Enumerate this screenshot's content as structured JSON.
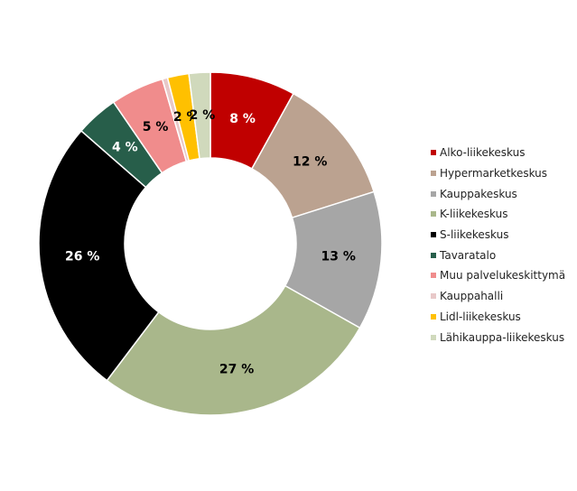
{
  "chart_data": {
    "type": "pie",
    "donut": true,
    "title": "",
    "legend_position": "right",
    "slices": [
      {
        "label": "Alko-liikekeskus",
        "value": 8,
        "display": "8 %",
        "color": "#c00000",
        "label_color": "#ffffff"
      },
      {
        "label": "Hypermarketkeskus",
        "value": 12,
        "display": "12 %",
        "color": "#bba290",
        "label_color": "#000000"
      },
      {
        "label": "Kauppakeskus",
        "value": 13,
        "display": "13 %",
        "color": "#a6a6a6",
        "label_color": "#000000"
      },
      {
        "label": "K-liikekeskus",
        "value": 27,
        "display": "27 %",
        "color": "#a9b78b",
        "label_color": "#000000"
      },
      {
        "label": "S-liikekeskus",
        "value": 26,
        "display": "26 %",
        "color": "#000000",
        "label_color": "#ffffff"
      },
      {
        "label": "Tavaratalo",
        "value": 4,
        "display": "4 %",
        "color": "#275e4a",
        "label_color": "#ffffff"
      },
      {
        "label": "Muu palvelukeskittymä",
        "value": 5,
        "display": "5 %",
        "color": "#f08c8c",
        "label_color": "#000000"
      },
      {
        "label": "Kauppahalli",
        "value": 0.5,
        "display": "",
        "color": "#e8c8c8",
        "label_color": "#000000"
      },
      {
        "label": "Lidl-liikekeskus",
        "value": 2,
        "display": "2 %",
        "color": "#ffc000",
        "label_color": "#000000"
      },
      {
        "label": "Lähikauppa-liikekeskus",
        "value": 2,
        "display": "2 %",
        "color": "#d0d9bc",
        "label_color": "#000000"
      }
    ]
  }
}
